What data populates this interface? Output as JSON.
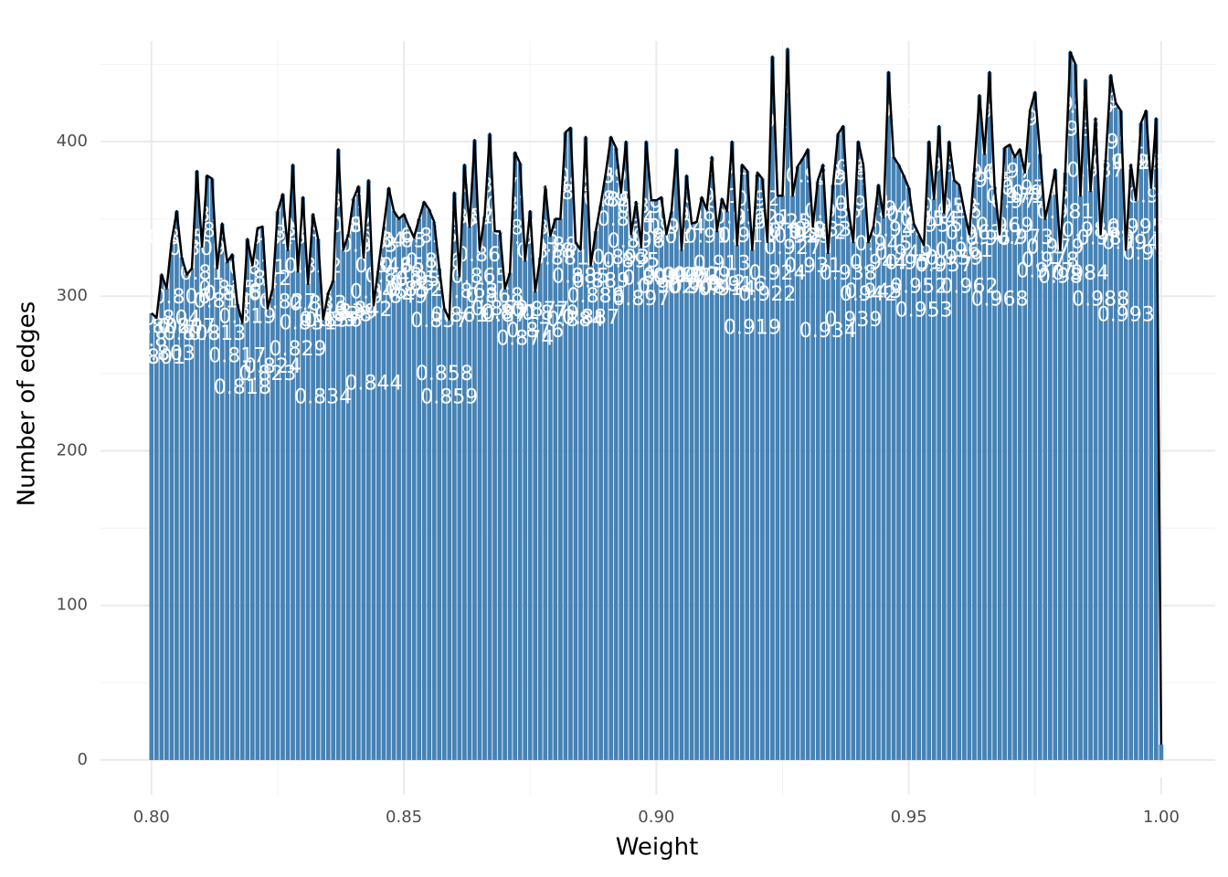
{
  "chart_data": {
    "type": "bar",
    "x_label": "Weight",
    "y_label": "Number of edges",
    "color": "#4682b4",
    "line": true,
    "line_color": "#000000",
    "grid": true,
    "minor_grid": true,
    "xlim": [
      0.7899,
      1.0107
    ],
    "ylim": [
      -22.5,
      465
    ],
    "xticks": [
      {
        "value": 0.8,
        "label": "0.80"
      },
      {
        "value": 0.85,
        "label": "0.85"
      },
      {
        "value": 0.9,
        "label": "0.90"
      },
      {
        "value": 0.95,
        "label": "0.95"
      },
      {
        "value": 1,
        "label": "1.00"
      }
    ],
    "yticks": [
      0,
      100,
      200,
      300,
      400
    ],
    "x": [
      0.8,
      0.801,
      0.802,
      0.803,
      0.804,
      0.805,
      0.806,
      0.807,
      0.808,
      0.809,
      0.81,
      0.811,
      0.812,
      0.813,
      0.814,
      0.815,
      0.816,
      0.817,
      0.818,
      0.819,
      0.82,
      0.821,
      0.822,
      0.823,
      0.824,
      0.825,
      0.826,
      0.827,
      0.828,
      0.829,
      0.83,
      0.831,
      0.832,
      0.833,
      0.834,
      0.835,
      0.836,
      0.837,
      0.838,
      0.839,
      0.84,
      0.841,
      0.842,
      0.843,
      0.844,
      0.845,
      0.846,
      0.847,
      0.848,
      0.849,
      0.85,
      0.851,
      0.852,
      0.853,
      0.854,
      0.855,
      0.856,
      0.857,
      0.858,
      0.859,
      0.86,
      0.861,
      0.862,
      0.863,
      0.864,
      0.865,
      0.866,
      0.867,
      0.868,
      0.869,
      0.87,
      0.871,
      0.872,
      0.873,
      0.874,
      0.875,
      0.876,
      0.877,
      0.878,
      0.879,
      0.88,
      0.881,
      0.882,
      0.883,
      0.884,
      0.885,
      0.886,
      0.887,
      0.888,
      0.889,
      0.89,
      0.891,
      0.892,
      0.893,
      0.894,
      0.895,
      0.896,
      0.897,
      0.898,
      0.899,
      0.9,
      0.901,
      0.902,
      0.903,
      0.904,
      0.905,
      0.906,
      0.907,
      0.908,
      0.909,
      0.91,
      0.911,
      0.912,
      0.913,
      0.914,
      0.915,
      0.916,
      0.917,
      0.918,
      0.919,
      0.92,
      0.921,
      0.922,
      0.923,
      0.924,
      0.925,
      0.926,
      0.927,
      0.928,
      0.929,
      0.93,
      0.931,
      0.932,
      0.933,
      0.934,
      0.935,
      0.936,
      0.937,
      0.938,
      0.939,
      0.94,
      0.941,
      0.942,
      0.943,
      0.944,
      0.945,
      0.946,
      0.947,
      0.948,
      0.949,
      0.95,
      0.951,
      0.952,
      0.953,
      0.954,
      0.955,
      0.956,
      0.957,
      0.958,
      0.959,
      0.96,
      0.961,
      0.962,
      0.963,
      0.964,
      0.965,
      0.966,
      0.967,
      0.968,
      0.969,
      0.97,
      0.971,
      0.972,
      0.973,
      0.974,
      0.975,
      0.976,
      0.977,
      0.978,
      0.979,
      0.98,
      0.981,
      0.982,
      0.983,
      0.984,
      0.985,
      0.986,
      0.987,
      0.988,
      0.989,
      0.99,
      0.991,
      0.992,
      0.993,
      0.994,
      0.995,
      0.996,
      0.997,
      0.998,
      0.999,
      1
    ],
    "values": [
      289,
      286,
      314,
      305,
      336,
      355,
      325,
      314,
      318,
      381,
      332,
      378,
      376,
      318,
      347,
      322,
      327,
      295,
      283,
      337,
      320,
      344,
      345,
      292,
      305,
      355,
      366,
      330,
      385,
      316,
      364,
      308,
      353,
      337,
      285,
      302,
      310,
      395,
      330,
      340,
      363,
      371,
      325,
      375,
      294,
      320,
      345,
      370,
      355,
      350,
      353,
      345,
      338,
      350,
      361,
      356,
      348,
      318,
      292,
      285,
      367,
      313,
      385,
      345,
      401,
      330,
      352,
      405,
      342,
      342,
      305,
      315,
      393,
      386,
      323,
      355,
      303,
      325,
      371,
      339,
      350,
      350,
      406,
      409,
      335,
      330,
      403,
      320,
      342,
      360,
      380,
      403,
      396,
      367,
      400,
      340,
      361,
      332,
      400,
      362,
      362,
      364,
      340,
      355,
      395,
      330,
      378,
      347,
      348,
      364,
      356,
      390,
      342,
      363,
      355,
      400,
      333,
      385,
      381,
      330,
      380,
      376,
      335,
      455,
      365,
      365,
      460,
      365,
      384,
      389,
      395,
      345,
      375,
      385,
      328,
      372,
      405,
      410,
      357,
      335,
      400,
      385,
      335,
      345,
      372,
      351,
      445,
      390,
      385,
      378,
      370,
      347,
      340,
      333,
      400,
      363,
      410,
      354,
      400,
      375,
      372,
      355,
      340,
      383,
      430,
      392,
      445,
      371,
      340,
      396,
      398,
      390,
      395,
      380,
      420,
      432,
      392,
      350,
      365,
      382,
      330,
      380,
      458,
      450,
      365,
      440,
      368,
      415,
      340,
      388,
      443,
      425,
      420,
      330,
      385,
      362,
      412,
      420,
      370,
      415,
      10
    ]
  }
}
